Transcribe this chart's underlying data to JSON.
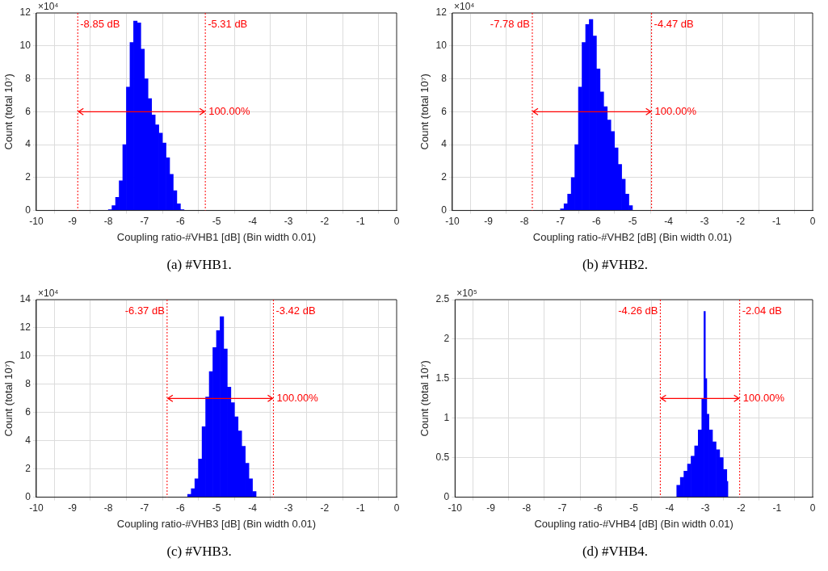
{
  "chart_data": [
    {
      "type": "histogram",
      "title": "(a) #VHB1.",
      "xlabel": "Coupling ratio-#VHB1 [dB] (Bin width 0.01)",
      "ylabel": "Count (total 10⁷)",
      "color": "#0000ff",
      "bins": [
        -8.0,
        -7.9,
        -7.8,
        -7.7,
        -7.6,
        -7.5,
        -7.4,
        -7.3,
        -7.2,
        -7.1,
        -7.0,
        -6.9,
        -6.8,
        -6.7,
        -6.6,
        -6.5,
        -6.4,
        -6.3,
        -6.2,
        -6.1,
        -6.0,
        -5.9
      ],
      "values": [
        0.05,
        0.3,
        0.8,
        1.8,
        4,
        7.5,
        10.2,
        11.5,
        11.4,
        9.8,
        8,
        6.8,
        5.8,
        5.2,
        4.7,
        4.1,
        3.2,
        2.2,
        1.2,
        0.4,
        0.05
      ],
      "xlim": [
        -10,
        0
      ],
      "xticks": [
        -10,
        -9,
        -8,
        -7,
        -6,
        -5,
        -4,
        -3,
        -2,
        -1,
        0
      ],
      "ylim": [
        0,
        12
      ],
      "yticks": [
        0,
        2,
        4,
        6,
        8,
        10,
        12
      ],
      "grid": true,
      "ref_lines": [
        {
          "axis": "x",
          "value": -8.85,
          "label": "-8.85 dB",
          "color": "#ff0000",
          "line_style": "dotted"
        },
        {
          "axis": "x",
          "value": -5.31,
          "label": "-5.31 dB",
          "color": "#ff0000",
          "line_style": "dotted"
        }
      ],
      "annotations": [
        "×10⁴",
        {
          "text": "100.00%",
          "x": -5.31,
          "y": 6
        }
      ]
    },
    {
      "type": "histogram",
      "title": "(b) #VHB2.",
      "xlabel": "Coupling ratio-#VHB2 [dB] (Bin width 0.01)",
      "ylabel": "Count (total 10⁷)",
      "color": "#0000ff",
      "bins": [
        -7.0,
        -6.9,
        -6.8,
        -6.7,
        -6.6,
        -6.5,
        -6.4,
        -6.3,
        -6.2,
        -6.1,
        -6.0,
        -5.9,
        -5.8,
        -5.7,
        -5.6,
        -5.5,
        -5.4,
        -5.3,
        -5.2,
        -5.1,
        -5.0
      ],
      "values": [
        0.1,
        0.4,
        1.0,
        2.0,
        4,
        7.5,
        10.2,
        11.3,
        11.6,
        10.6,
        8.6,
        7.2,
        6.3,
        5.5,
        4.8,
        3.8,
        2.8,
        1.9,
        1.0,
        0.3
      ],
      "xlim": [
        -10,
        0
      ],
      "xticks": [
        -10,
        -9,
        -8,
        -7,
        -6,
        -5,
        -4,
        -3,
        -2,
        -1,
        0
      ],
      "ylim": [
        0,
        12
      ],
      "yticks": [
        0,
        2,
        4,
        6,
        8,
        10,
        12
      ],
      "grid": true,
      "ref_lines": [
        {
          "axis": "x",
          "value": -7.78,
          "label": "-7.78 dB",
          "color": "#ff0000",
          "line_style": "dotted"
        },
        {
          "axis": "x",
          "value": -4.47,
          "label": "-4.47 dB",
          "color": "#ff0000",
          "line_style": "dotted"
        }
      ],
      "annotations": [
        "×10⁴",
        {
          "text": "100.00%",
          "x": -4.47,
          "y": 6
        }
      ]
    },
    {
      "type": "histogram",
      "title": "(c) #VHB3.",
      "xlabel": "Coupling ratio-#VHB3 [dB] (Bin width 0.01)",
      "ylabel": "Count (total 10⁷)",
      "color": "#0000ff",
      "bins": [
        -5.8,
        -5.7,
        -5.6,
        -5.5,
        -5.4,
        -5.3,
        -5.2,
        -5.1,
        -5.0,
        -4.9,
        -4.8,
        -4.7,
        -4.6,
        -4.5,
        -4.4,
        -4.3,
        -4.2,
        -4.1,
        -4.0,
        -3.9
      ],
      "values": [
        0.2,
        0.6,
        1.3,
        2.7,
        5,
        7.1,
        8.9,
        10.6,
        11.8,
        12.8,
        10.5,
        7.8,
        6.7,
        5.7,
        4.7,
        3.6,
        2.4,
        1.3,
        0.4
      ],
      "xlim": [
        -10,
        0
      ],
      "xticks": [
        -10,
        -9,
        -8,
        -7,
        -6,
        -5,
        -4,
        -3,
        -2,
        -1,
        0
      ],
      "ylim": [
        0,
        14
      ],
      "yticks": [
        0,
        2,
        4,
        6,
        8,
        10,
        12,
        14
      ],
      "grid": true,
      "ref_lines": [
        {
          "axis": "x",
          "value": -6.37,
          "label": "-6.37 dB",
          "color": "#ff0000",
          "line_style": "dotted"
        },
        {
          "axis": "x",
          "value": -3.42,
          "label": "-3.42 dB",
          "color": "#ff0000",
          "line_style": "dotted"
        }
      ],
      "annotations": [
        "×10⁴",
        {
          "text": "100.00%",
          "x": -3.42,
          "y": 7
        }
      ]
    },
    {
      "type": "histogram",
      "title": "(d) #VHB4.",
      "xlabel": "Coupling ratio-#VHB4 [dB] (Bin width 0.01)",
      "ylabel": "Count (total 10⁷)",
      "color": "#0000ff",
      "bins": [
        -3.8,
        -3.7,
        -3.6,
        -3.5,
        -3.4,
        -3.3,
        -3.2,
        -3.1,
        -3.04,
        -3.0,
        -2.96,
        -2.9,
        -2.8,
        -2.7,
        -2.6,
        -2.5,
        -2.4,
        -2.37
      ],
      "values": [
        0.15,
        0.25,
        0.33,
        0.42,
        0.52,
        0.65,
        0.85,
        1.25,
        2.35,
        1.5,
        1.05,
        0.85,
        0.7,
        0.6,
        0.5,
        0.35,
        0.2
      ],
      "xlim": [
        -10,
        0
      ],
      "xticks": [
        -10,
        -9,
        -8,
        -7,
        -6,
        -5,
        -4,
        -3,
        -2,
        -1,
        0
      ],
      "ylim": [
        0,
        2.5
      ],
      "yticks": [
        0,
        0.5,
        1,
        1.5,
        2,
        2.5
      ],
      "grid": true,
      "ref_lines": [
        {
          "axis": "x",
          "value": -4.26,
          "label": "-4.26 dB",
          "color": "#ff0000",
          "line_style": "dotted"
        },
        {
          "axis": "x",
          "value": -2.04,
          "label": "-2.04 dB",
          "color": "#ff0000",
          "line_style": "dotted"
        }
      ],
      "annotations": [
        "×10⁵",
        {
          "text": "100.00%",
          "x": -2.04,
          "y": 1.25
        }
      ]
    }
  ]
}
